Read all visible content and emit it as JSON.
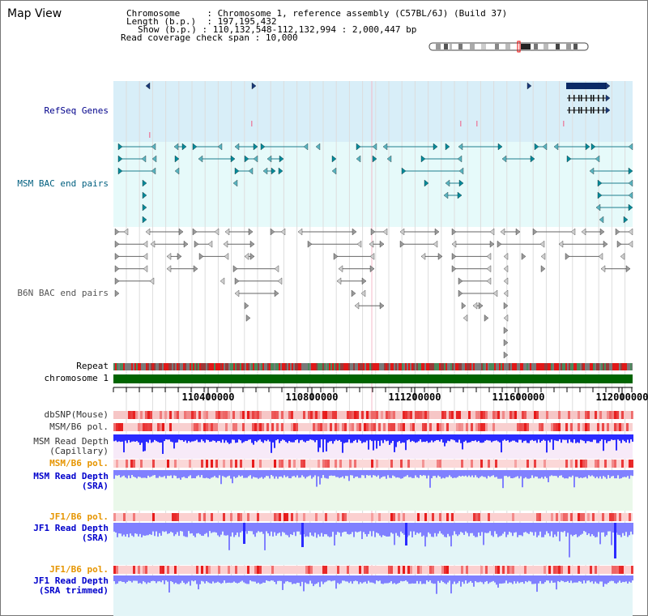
{
  "page": {
    "title": "Map View"
  },
  "info": {
    "chromosome_label": "Chromosome",
    "chromosome_value": "Chromosome 1, reference assembly (C57BL/6J) (Build 37)",
    "length_label": "Length (b.p.)",
    "length_value": "197,195,432",
    "show_label": "Show (b.p.)",
    "show_value": "110,132,548-112,132,994 : 2,000,447 bp",
    "coverage_label": "Read coverage check span",
    "coverage_value": "10,000"
  },
  "tracks": {
    "refseq": "RefSeq Genes",
    "msm_bac": "MSM BAC end pairs",
    "b6n_bac": "B6N BAC end pairs",
    "repeat": "Repeat",
    "chromosome": "chromosome 1",
    "dbsnp": "dbSNP(Mouse)",
    "msm_pol": "MSM/B6 pol.",
    "msm_depth_cap_1": "MSM Read Depth",
    "msm_depth_cap_2": "(Capillary)",
    "msm_pol_sra": "MSM/B6 pol.",
    "msm_depth_sra_1": "MSM Read Depth",
    "msm_depth_sra_2": "(SRA)",
    "jf1_pol_1": "JF1/B6 pol.",
    "jf1_depth_sra_1": "JF1 Read Depth",
    "jf1_depth_sra_2": "(SRA)",
    "jf1_pol_2": "JF1/B6 pol.",
    "jf1_depth_trim_1": "JF1 Read Depth",
    "jf1_depth_trim_2": "(SRA trimmed)"
  },
  "axis": {
    "ticks": [
      "110400000",
      "110800000",
      "111200000",
      "111600000",
      "112000000"
    ]
  },
  "colors": {
    "refseq_bg": "#d8eef8",
    "bac_bg": "#e6fafa",
    "chromosome_bar": "#006400",
    "depth_fill_dark": "#2b2bff",
    "depth_fill_light": "#8080ff",
    "polymorphism": "#ee2222"
  }
}
